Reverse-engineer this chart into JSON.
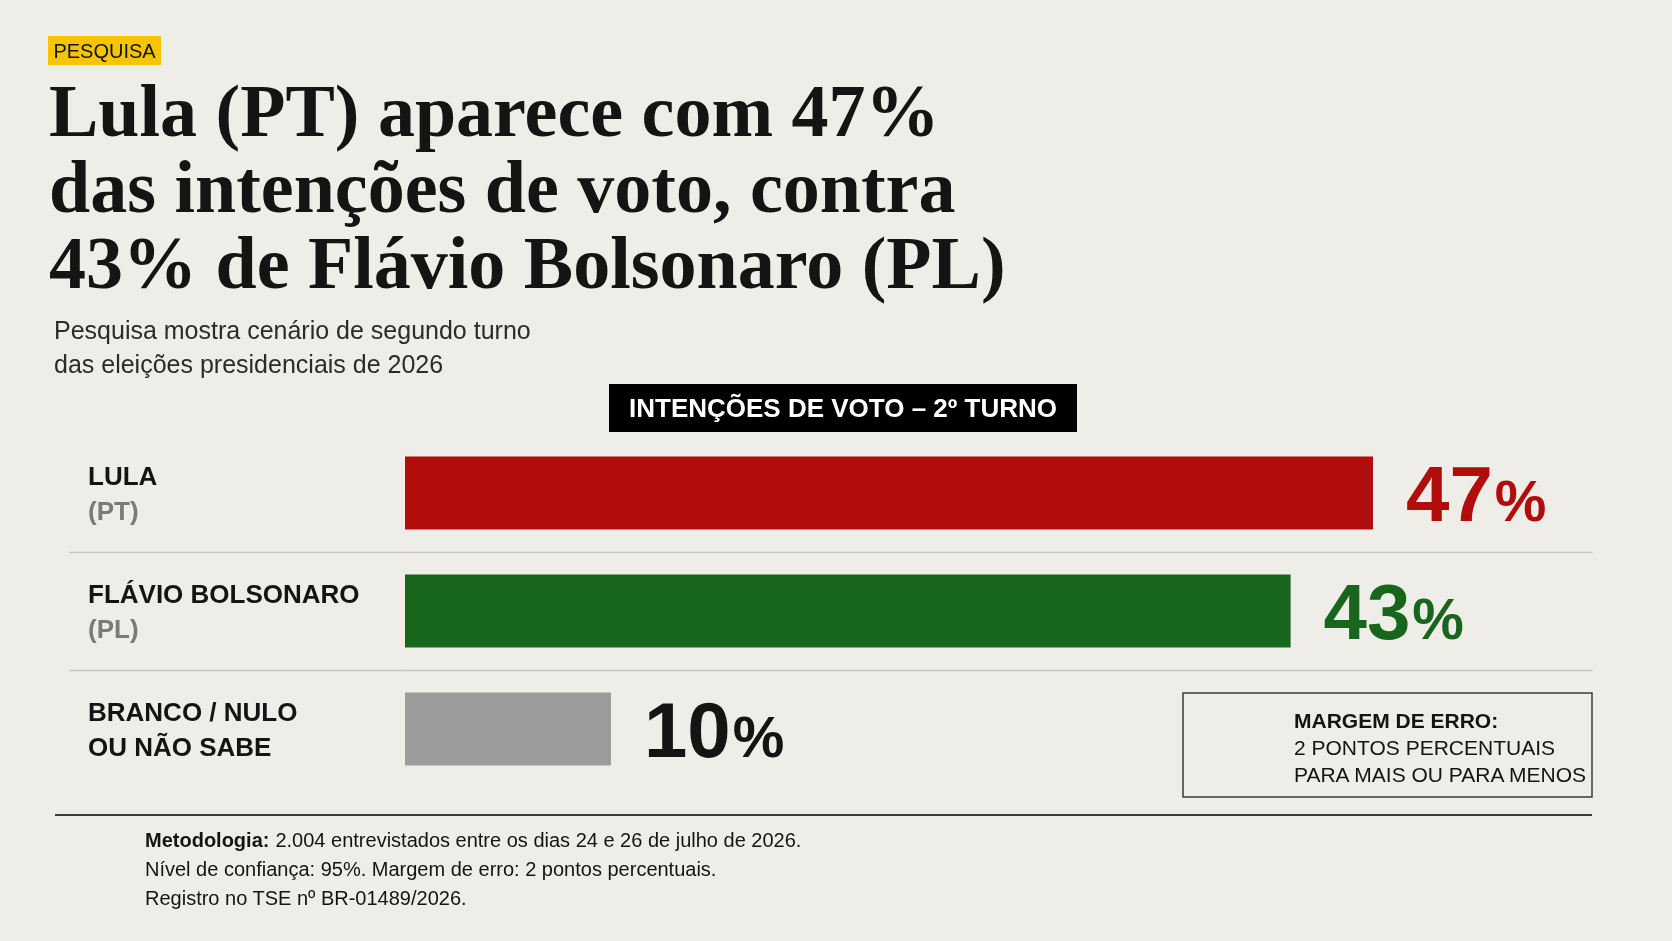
{
  "chart_data": {
    "type": "bar",
    "orientation": "horizontal",
    "title": "Lula (PT) aparece com 47%\ndas intenções de voto, contra\n43% de Flávio Bolsonaro (PL)",
    "subtitle": "Pesquisa mostra cenário de segundo turno\ndas eleições presidenciais de 2026",
    "categories": [
      "LULA\n(PT)",
      "FLÁVIO BOLSONARO\n(PL)",
      "BRANCO / NULO\nOU NÃO SABE"
    ],
    "values": [
      47,
      43,
      10
    ],
    "colors": [
      "#b20d0d",
      "#17661b",
      "#9c9c9c"
    ],
    "value_labels": [
      "47%",
      "43%",
      "10%"
    ],
    "grid": "y",
    "tick_labels": "y",
    "annotations": [
      "PESQUISA",
      "INTENÇÕES DE VOTO – 2º TURNO",
      "MARGEM DE ERRO:\n2 PONTOS PERCENTUAIS\nPARA MAIS OU PARA MENOS",
      "Metodologia: 2.004 entrevistados entre os dias 24 e 26 de julho de 2026.\nNível de confiança: 95%. Margem de erro: 2 pontos percentuais.\nRegistro no TSE nº BR-01489/2026."
    ]
  }
}
